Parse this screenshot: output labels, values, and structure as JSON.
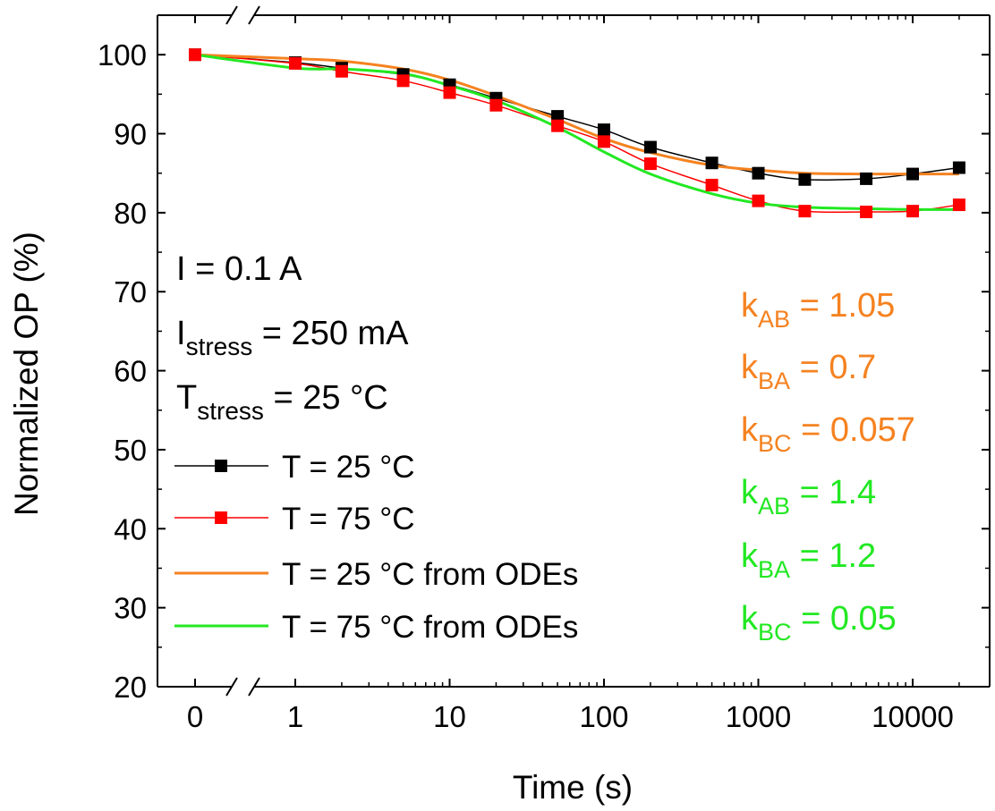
{
  "chart_data": {
    "type": "line",
    "title": "",
    "xlabel": "Time (s)",
    "ylabel": "Normalized OP (%)",
    "xscale": "log with broken axis at 0",
    "xlim": [
      0,
      20000
    ],
    "ylim": [
      20,
      105
    ],
    "x_ticks": [
      {
        "value": 0,
        "label": "0"
      },
      {
        "value": 1,
        "label": "1"
      },
      {
        "value": 10,
        "label": "10"
      },
      {
        "value": 100,
        "label": "100"
      },
      {
        "value": 1000,
        "label": "1000"
      },
      {
        "value": 10000,
        "label": "10000"
      }
    ],
    "y_ticks": [
      {
        "value": 20,
        "label": "20"
      },
      {
        "value": 30,
        "label": "30"
      },
      {
        "value": 40,
        "label": "40"
      },
      {
        "value": 50,
        "label": "50"
      },
      {
        "value": 60,
        "label": "60"
      },
      {
        "value": 70,
        "label": "70"
      },
      {
        "value": 80,
        "label": "80"
      },
      {
        "value": 90,
        "label": "90"
      },
      {
        "value": 100,
        "label": "100"
      }
    ],
    "series": [
      {
        "name": "T = 25 °C",
        "kind": "line-marker",
        "color": "#000000",
        "points": [
          [
            0,
            100
          ],
          [
            1,
            99
          ],
          [
            2,
            98.3
          ],
          [
            5,
            97.5
          ],
          [
            10,
            96.2
          ],
          [
            20,
            94.5
          ],
          [
            50,
            92.2
          ],
          [
            100,
            90.5
          ],
          [
            200,
            88.3
          ],
          [
            500,
            86.3
          ],
          [
            1000,
            85.0
          ],
          [
            2000,
            84.2
          ],
          [
            5000,
            84.3
          ],
          [
            10000,
            84.9
          ],
          [
            20000,
            85.7
          ]
        ]
      },
      {
        "name": "T = 75 °C",
        "kind": "line-marker",
        "color": "#ff0000",
        "points": [
          [
            0,
            100
          ],
          [
            1,
            98.9
          ],
          [
            2,
            97.9
          ],
          [
            5,
            96.7
          ],
          [
            10,
            95.2
          ],
          [
            20,
            93.6
          ],
          [
            50,
            91.0
          ],
          [
            100,
            89.0
          ],
          [
            200,
            86.2
          ],
          [
            500,
            83.5
          ],
          [
            1000,
            81.5
          ],
          [
            2000,
            80.2
          ],
          [
            5000,
            80.1
          ],
          [
            10000,
            80.2
          ],
          [
            20000,
            81.0
          ]
        ]
      },
      {
        "name": "T = 25 °C from ODEs",
        "kind": "line",
        "color": "#f58220",
        "points": [
          [
            0,
            100
          ],
          [
            1,
            99.5
          ],
          [
            2,
            99.2
          ],
          [
            5,
            98.2
          ],
          [
            10,
            96.8
          ],
          [
            20,
            94.8
          ],
          [
            50,
            91.8
          ],
          [
            100,
            89.4
          ],
          [
            200,
            87.6
          ],
          [
            500,
            86.0
          ],
          [
            1000,
            85.4
          ],
          [
            2000,
            85.0
          ],
          [
            5000,
            84.9
          ],
          [
            10000,
            84.9
          ],
          [
            20000,
            84.9
          ]
        ]
      },
      {
        "name": "T = 75 °C from ODEs",
        "kind": "line",
        "color": "#22e822",
        "points": [
          [
            0,
            100
          ],
          [
            1,
            98.3
          ],
          [
            2,
            98.2
          ],
          [
            5,
            97.6
          ],
          [
            10,
            96.1
          ],
          [
            20,
            94.2
          ],
          [
            50,
            90.8
          ],
          [
            100,
            87.7
          ],
          [
            200,
            84.9
          ],
          [
            500,
            82.4
          ],
          [
            1000,
            81.2
          ],
          [
            2000,
            80.7
          ],
          [
            5000,
            80.5
          ],
          [
            10000,
            80.4
          ],
          [
            20000,
            80.4
          ]
        ]
      }
    ],
    "conditions": [
      {
        "main": "I = 0.1 A",
        "sub": ""
      },
      {
        "main": "I",
        "sub": "stress",
        "rest": " = 250 mA"
      },
      {
        "main": "T",
        "sub": "stress",
        "rest": " = 25 °C"
      }
    ],
    "legend": {
      "placement": "left",
      "entries": [
        {
          "label": "T = 25 °C",
          "color": "#000000",
          "marker": true
        },
        {
          "label": "T = 75 °C",
          "color": "#ff0000",
          "marker": true
        },
        {
          "label": "T = 25 °C from ODEs",
          "color": "#f58220",
          "marker": false
        },
        {
          "label": "T = 75 °C from ODEs",
          "color": "#22e822",
          "marker": false
        }
      ]
    },
    "parameters": [
      {
        "k": "k",
        "sub": "AB",
        "rest": " = 1.05",
        "color": "#f58220"
      },
      {
        "k": "k",
        "sub": "BA",
        "rest": " = 0.7",
        "color": "#f58220"
      },
      {
        "k": "k",
        "sub": "BC",
        "rest": " = 0.057",
        "color": "#f58220"
      },
      {
        "k": "k",
        "sub": "AB",
        "rest": " = 1.4",
        "color": "#22e822"
      },
      {
        "k": "k",
        "sub": "BA",
        "rest": " = 1.2",
        "color": "#22e822"
      },
      {
        "k": "k",
        "sub": "BC",
        "rest": " = 0.05",
        "color": "#22e822"
      }
    ]
  }
}
